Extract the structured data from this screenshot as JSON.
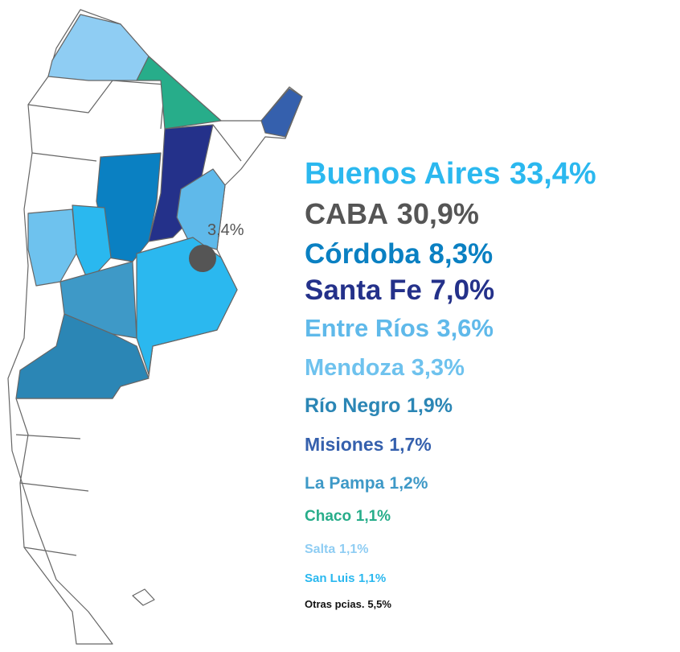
{
  "map_label": "3,4%",
  "legend": [
    {
      "name": "Buenos Aires",
      "share": "33,4%",
      "color": "#2bb8ef"
    },
    {
      "name": "CABA",
      "share": "30,9%",
      "color": "#555555"
    },
    {
      "name": "Córdoba",
      "share": "8,3%",
      "color": "#0a80c2"
    },
    {
      "name": "Santa Fe",
      "share": "7,0%",
      "color": "#24318a"
    },
    {
      "name": "Entre Ríos",
      "share": "3,6%",
      "color": "#5fb9ea"
    },
    {
      "name": "Mendoza",
      "share": "3,3%",
      "color": "#6ec2ee"
    },
    {
      "name": "Río Negro",
      "share": "1,9%",
      "color": "#2b86b5"
    },
    {
      "name": "Misiones",
      "share": "1,7%",
      "color": "#3560ad"
    },
    {
      "name": "La Pampa",
      "share": "1,2%",
      "color": "#3e99c7"
    },
    {
      "name": "Chaco",
      "share": "1,1%",
      "color": "#27ad8a"
    },
    {
      "name": "Salta",
      "share": "1,1%",
      "color": "#8fcdf3"
    },
    {
      "name": "San Luis",
      "share": "1,1%",
      "color": "#2ab8ef"
    },
    {
      "name": "Otras pcias.",
      "share": "5,5%",
      "color": "#111111"
    }
  ]
}
